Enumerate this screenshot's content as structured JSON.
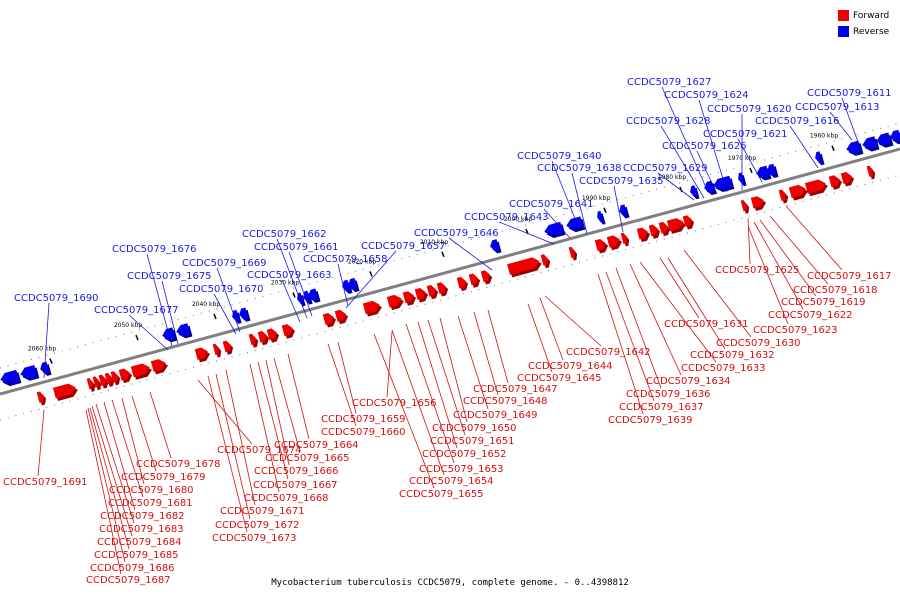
{
  "legend": {
    "items": [
      {
        "label": "Forward",
        "color": "#ee0000"
      },
      {
        "label": "Reverse",
        "color": "#0000ee"
      }
    ]
  },
  "caption": "Mycobacterium tuberculosis CCDC5079, complete genome. - 0..4398812",
  "colors": {
    "forward": "#ee0000",
    "reverse": "#0000ee",
    "forward_label": "#d41010",
    "reverse_label": "#1a1ae6",
    "axis": "#808080"
  },
  "ticks": [
    "2060 kbp",
    "2050 kbp",
    "2040 kbp",
    "2030 kbp",
    "2020 kbp",
    "2010 kbp",
    "2000 kbp",
    "1990 kbp",
    "1980 kbp",
    "1970 kbp",
    "1960 kbp"
  ],
  "reverse_labels": [
    "CCDC5079_1627",
    "CCDC5079_1624",
    "CCDC5079_1611",
    "CCDC5079_1620",
    "CCDC5079_1613",
    "CCDC5079_1628",
    "CCDC5079_1616",
    "CCDC5079_1621",
    "CCDC5079_1626",
    "CCDC5079_1640",
    "CCDC5079_1638",
    "CCDC5079_1629",
    "CCDC5079_1635",
    "CCDC5079_1641",
    "CCDC5079_1643",
    "CCDC5079_1646",
    "CCDC5079_1662",
    "CCDC5079_1661",
    "CCDC5079_1657",
    "CCDC5079_1676",
    "CCDC5079_1669",
    "CCDC5079_1658",
    "CCDC5079_1663",
    "CCDC5079_1675",
    "CCDC5079_1670",
    "CCDC5079_1690",
    "CCDC5079_1677"
  ],
  "forward_labels": [
    "CCDC5079_1625",
    "CCDC5079_1617",
    "CCDC5079_1618",
    "CCDC5079_1619",
    "CCDC5079_1622",
    "CCDC5079_1623",
    "CCDC5079_1631",
    "CCDC5079_1642",
    "CCDC5079_1632",
    "CCDC5079_1630",
    "CCDC5079_1644",
    "CCDC5079_1633",
    "CCDC5079_1645",
    "CCDC5079_1634",
    "CCDC5079_1647",
    "CCDC5079_1636",
    "CCDC5079_1648",
    "CCDC5079_1637",
    "CCDC5079_1656",
    "CCDC5079_1649",
    "CCDC5079_1639",
    "CCDC5079_1659",
    "CCDC5079_1650",
    "CCDC5079_1660",
    "CCDC5079_1651",
    "CCDC5079_1664",
    "CCDC5079_1674",
    "CCDC5079_1652",
    "CCDC5079_1665",
    "CCDC5079_1678",
    "CCDC5079_1653",
    "CCDC5079_1666",
    "CCDC5079_1691",
    "CCDC5079_1679",
    "CCDC5079_1654",
    "CCDC5079_1667",
    "CCDC5079_1680",
    "CCDC5079_1655",
    "CCDC5079_1668",
    "CCDC5079_1681",
    "CCDC5079_1671",
    "CCDC5079_1682",
    "CCDC5079_1672",
    "CCDC5079_1683",
    "CCDC5079_1673",
    "CCDC5079_1684",
    "CCDC5079_1685",
    "CCDC5079_1686",
    "CCDC5079_1687"
  ]
}
